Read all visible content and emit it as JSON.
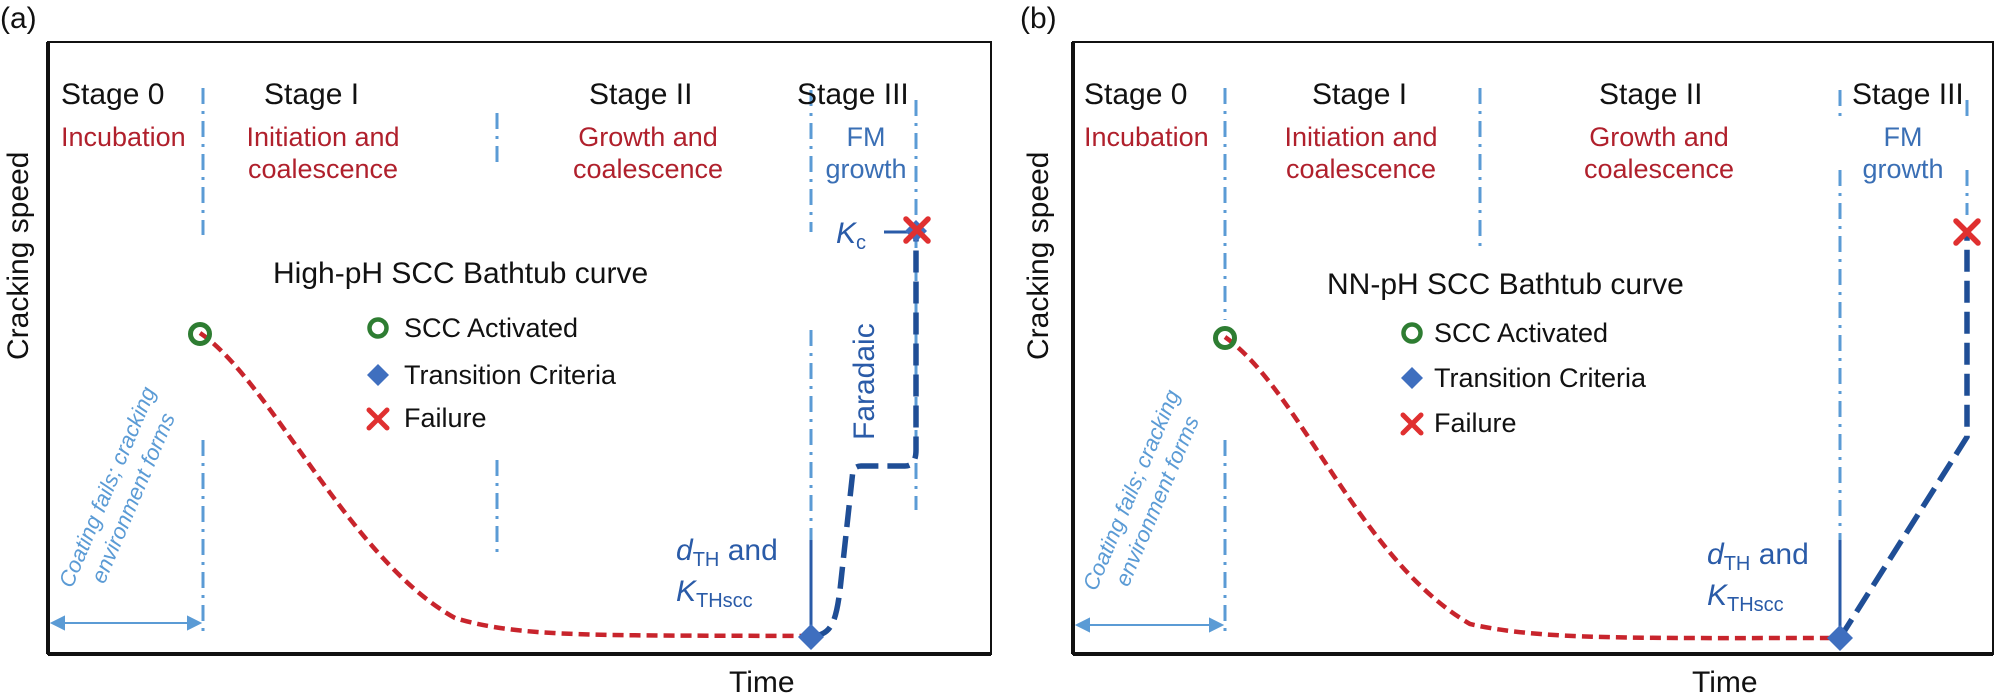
{
  "panels": {
    "a": {
      "label": "(a)",
      "stages": [
        "Stage 0",
        "Stage I",
        "Stage II",
        "Stage III"
      ],
      "stage_subs": {
        "s0": "Incubation",
        "s1_line1": "Initiation and",
        "s1_line2": "coalescence",
        "s2_line1": "Growth and",
        "s2_line2": "coalescence"
      },
      "fm": {
        "line1": "FM",
        "line2": "growth"
      },
      "title": "High-pH SCC Bathtub curve",
      "legend": {
        "activated": "SCC Activated",
        "transition": "Transition Criteria",
        "failure": "Failure"
      },
      "ylabel": "Cracking speed",
      "xlabel": "Time",
      "note": {
        "line1": "Coating fails; cracking",
        "line2": "environment forms"
      },
      "threshold": {
        "d": "d",
        "d_sub": "TH",
        "and": " and",
        "k": "K",
        "k_sub": "THscc"
      },
      "faradaic": "Faradaic",
      "kc": {
        "k": "K",
        "sub": "c"
      }
    },
    "b": {
      "label": "(b)",
      "stages": [
        "Stage 0",
        "Stage I",
        "Stage II",
        "Stage III"
      ],
      "stage_subs": {
        "s0": "Incubation",
        "s1_line1": "Initiation and",
        "s1_line2": "coalescence",
        "s2_line1": "Growth and",
        "s2_line2": "coalescence"
      },
      "fm": {
        "line1": "FM",
        "line2": "growth"
      },
      "title": "NN-pH SCC Bathtub curve",
      "legend": {
        "activated": "SCC Activated",
        "transition": "Transition Criteria",
        "failure": "Failure"
      },
      "ylabel": "Cracking speed",
      "xlabel": "Time",
      "note": {
        "line1": "Coating fails; cracking",
        "line2": "environment forms"
      },
      "threshold": {
        "d": "d",
        "d_sub": "TH",
        "and": " and",
        "k": "K",
        "k_sub": "THscc"
      }
    }
  },
  "colors": {
    "curve_red": "#c8242c",
    "curve_blue": "#1f4e96",
    "divider": "#5b9bd5",
    "marker_green": "#2e7d32",
    "marker_diamond": "#3f6fbf",
    "marker_x": "#e03030",
    "stage_sub_text": "#b0202c",
    "fm_text": "#3a6fb5"
  },
  "icons": [
    "circle-marker-icon",
    "diamond-marker-icon",
    "x-marker-icon"
  ]
}
